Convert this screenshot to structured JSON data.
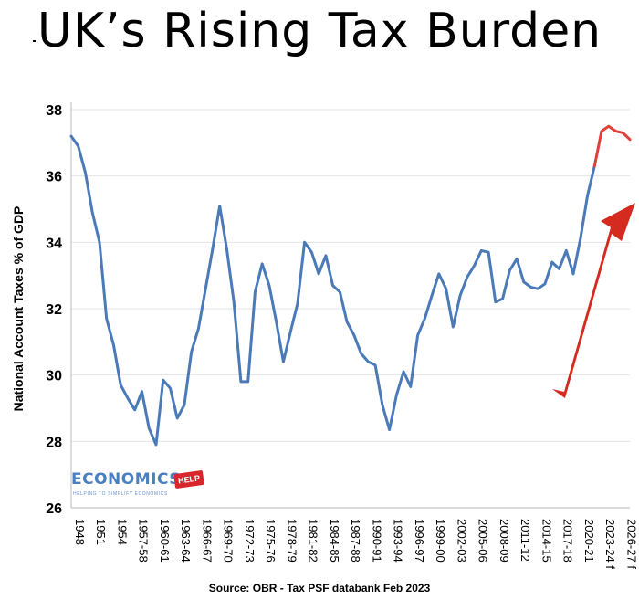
{
  "title": "UK’s Rising Tax Burden",
  "source": "Source: OBR - Tax PSF databank Feb 2023",
  "logo": {
    "main": "ECONOMICS",
    "badge": "HELP",
    "tagline": "HELPING TO SIMPLIFY ECONOMICS"
  },
  "colors": {
    "line": "#4a7ab8",
    "forecast": "#e0403a",
    "arrow": "#d42a20",
    "grid": "#e4e4e4"
  },
  "icons": {
    "arrow": "red-up-arrow-icon"
  },
  "chart_data": {
    "type": "line",
    "ylabel": "National Account Taxes % of GDP",
    "xlabel": "",
    "ylim": [
      26,
      38
    ],
    "yticks": [
      26,
      28,
      30,
      32,
      34,
      36,
      38
    ],
    "grid": true,
    "tick_labels": [
      "1948",
      "1951",
      "1954",
      "1957-58",
      "1960-61",
      "1963-64",
      "1966-67",
      "1969-70",
      "1972-73",
      "1975-76",
      "1978-79",
      "1981-82",
      "1984-85",
      "1987-88",
      "1990-91",
      "1993-94",
      "1996-97",
      "1999-00",
      "2002-03",
      "2005-06",
      "2008-09",
      "2011-12",
      "2014-15",
      "2017-18",
      "2020-21",
      "2023-24 f",
      "2026-27 f"
    ],
    "series": [
      {
        "values": [
          37.2,
          36.9,
          36.1,
          34.9,
          34.0,
          31.7,
          30.9,
          29.7,
          29.3,
          28.95,
          29.5,
          28.4,
          27.9,
          29.85,
          29.6,
          28.7,
          29.1,
          30.7,
          31.4,
          32.6,
          33.8,
          35.1,
          33.8,
          32.2,
          29.8,
          29.8,
          32.5,
          33.35,
          32.7,
          31.6,
          30.4,
          31.3,
          32.15,
          34.0,
          33.7,
          33.05,
          33.6,
          32.7,
          32.5,
          31.6,
          31.2,
          30.65,
          30.4,
          30.3,
          29.1,
          28.35,
          29.4,
          30.1,
          29.65,
          31.2,
          31.7,
          32.4,
          33.05,
          32.6,
          31.45,
          32.4,
          32.95,
          33.3,
          33.75,
          33.7,
          32.2,
          32.3,
          33.15,
          33.5,
          32.8,
          32.65,
          32.6,
          32.75,
          33.4,
          33.2,
          33.75,
          33.05,
          34.1,
          35.4,
          36.3,
          37.35,
          37.5,
          37.35,
          37.3,
          37.1
        ]
      }
    ],
    "forecast_start_index": 74
  }
}
